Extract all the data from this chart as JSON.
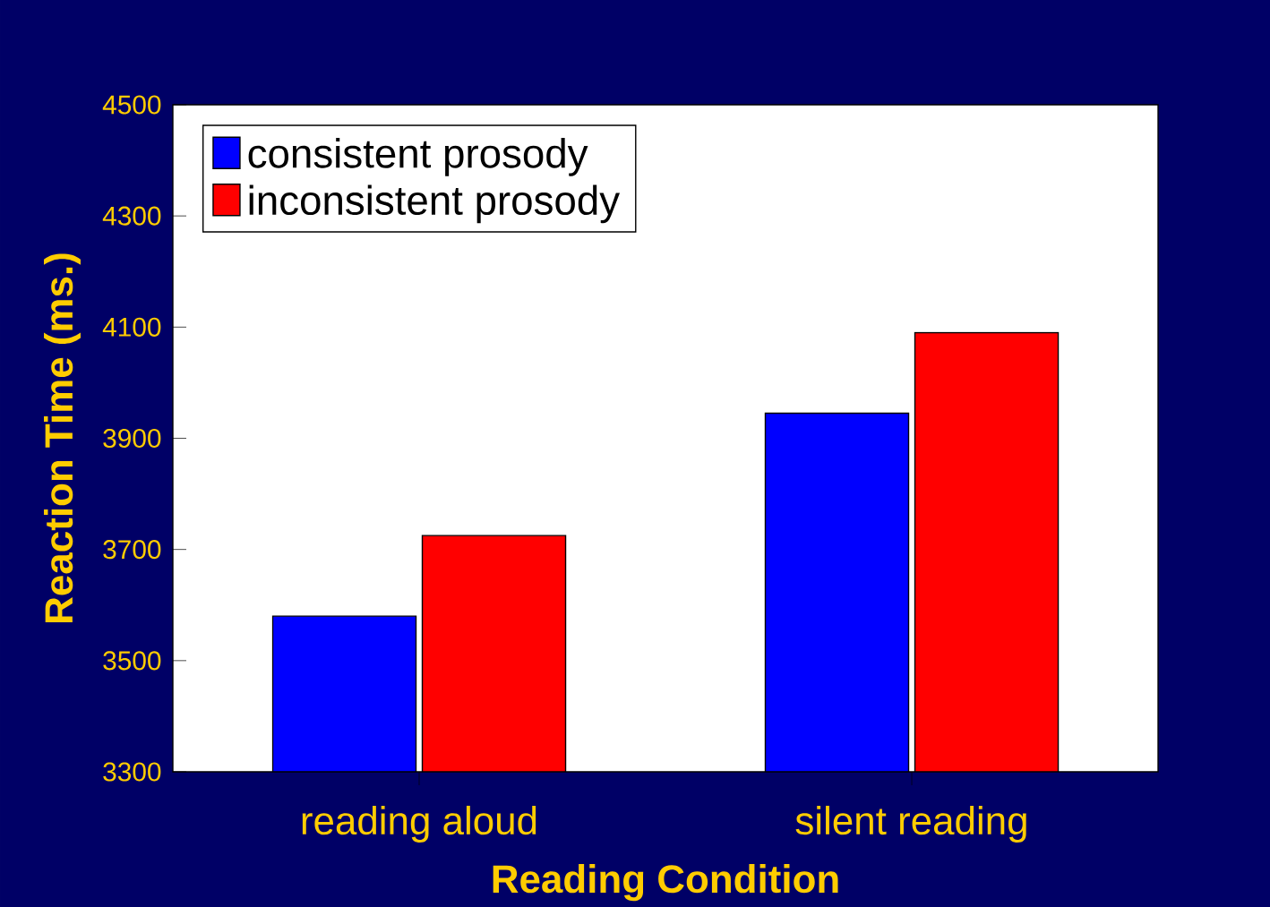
{
  "chart_data": {
    "type": "bar",
    "xlabel": "Reading Condition",
    "ylabel": "Reaction Time (ms.)",
    "categories": [
      "reading aloud",
      "silent reading"
    ],
    "series": [
      {
        "name": "consistent prosody",
        "color": "#0000ff",
        "values": [
          3580,
          3945
        ]
      },
      {
        "name": "inconsistent prosody",
        "color": "#ff0000",
        "values": [
          3725,
          4090
        ]
      }
    ],
    "ylim": [
      3300,
      4500
    ],
    "yticks": [
      3300,
      3500,
      3700,
      3900,
      4100,
      4300,
      4500
    ],
    "grid": false,
    "legend": "top left"
  }
}
